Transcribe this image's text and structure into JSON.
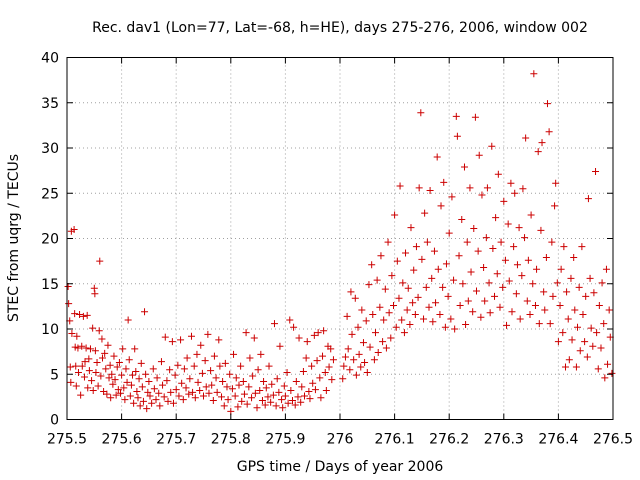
{
  "chart_data": {
    "type": "scatter",
    "title": "Rec. dav1 (Lon=77, Lat=-68, h=HE), days 275-276, 2006, window 002",
    "xlabel": "GPS time / Days of year 2006",
    "ylabel": "STEC from uqrg / TECUs",
    "xlim": [
      275.5,
      276.5
    ],
    "ylim": [
      0,
      40
    ],
    "xticks": [
      "275.5",
      "275.6",
      "275.7",
      "275.8",
      "275.9",
      "276",
      "276.1",
      "276.2",
      "276.3",
      "276.4",
      "276.5"
    ],
    "yticks": [
      "0",
      "5",
      "10",
      "15",
      "20",
      "25",
      "30",
      "35",
      "40"
    ],
    "grid": true,
    "marker": "+",
    "color": "#cc0000",
    "points": [
      [
        275.502,
        14.7
      ],
      [
        275.503,
        12.8
      ],
      [
        275.505,
        10.9
      ],
      [
        275.506,
        5.8
      ],
      [
        275.507,
        4.1
      ],
      [
        275.508,
        20.8
      ],
      [
        275.509,
        9.5
      ],
      [
        275.513,
        21.0
      ],
      [
        275.514,
        11.7
      ],
      [
        275.515,
        8.0
      ],
      [
        275.516,
        5.9
      ],
      [
        275.517,
        3.7
      ],
      [
        275.518,
        9.2
      ],
      [
        275.52,
        7.9
      ],
      [
        275.521,
        5.2
      ],
      [
        275.523,
        11.6
      ],
      [
        275.525,
        2.7
      ],
      [
        275.527,
        8.1
      ],
      [
        275.528,
        5.9
      ],
      [
        275.53,
        11.4
      ],
      [
        275.532,
        4.7
      ],
      [
        275.533,
        6.4
      ],
      [
        275.535,
        7.9
      ],
      [
        275.537,
        11.5
      ],
      [
        275.538,
        3.5
      ],
      [
        275.54,
        6.7
      ],
      [
        275.541,
        5.4
      ],
      [
        275.543,
        7.8
      ],
      [
        275.545,
        4.3
      ],
      [
        275.547,
        10.1
      ],
      [
        275.548,
        3.2
      ],
      [
        275.55,
        14.5
      ],
      [
        275.551,
        13.9
      ],
      [
        275.552,
        7.6
      ],
      [
        275.553,
        5.2
      ],
      [
        275.555,
        6.3
      ],
      [
        275.557,
        3.7
      ],
      [
        275.559,
        9.8
      ],
      [
        275.56,
        17.5
      ],
      [
        275.562,
        4.8
      ],
      [
        275.564,
        8.9
      ],
      [
        275.565,
        6.8
      ],
      [
        275.567,
        3.1
      ],
      [
        275.569,
        7.3
      ],
      [
        275.571,
        5.6
      ],
      [
        275.573,
        2.8
      ],
      [
        275.575,
        8.2
      ],
      [
        275.577,
        4.6
      ],
      [
        275.579,
        6.0
      ],
      [
        275.58,
        2.4
      ],
      [
        275.582,
        5.0
      ],
      [
        275.584,
        3.9
      ],
      [
        275.586,
        7.0
      ],
      [
        275.588,
        4.4
      ],
      [
        275.59,
        2.7
      ],
      [
        275.592,
        5.8
      ],
      [
        275.594,
        3.3
      ],
      [
        275.596,
        6.3
      ],
      [
        275.598,
        2.9
      ],
      [
        275.6,
        4.9
      ],
      [
        275.602,
        7.8
      ],
      [
        275.604,
        3.5
      ],
      [
        275.606,
        2.2
      ],
      [
        275.608,
        5.6
      ],
      [
        275.61,
        4.1
      ],
      [
        275.612,
        11.0
      ],
      [
        275.614,
        6.6
      ],
      [
        275.616,
        2.6
      ],
      [
        275.618,
        3.8
      ],
      [
        275.62,
        4.9
      ],
      [
        275.622,
        1.8
      ],
      [
        275.624,
        7.8
      ],
      [
        275.626,
        5.3
      ],
      [
        275.628,
        3.1
      ],
      [
        275.63,
        2.4
      ],
      [
        275.632,
        4.5
      ],
      [
        275.634,
        1.5
      ],
      [
        275.636,
        6.2
      ],
      [
        275.638,
        3.6
      ],
      [
        275.64,
        2.0
      ],
      [
        275.642,
        11.9
      ],
      [
        275.644,
        5.0
      ],
      [
        275.646,
        1.2
      ],
      [
        275.648,
        3.0
      ],
      [
        275.65,
        4.2
      ],
      [
        275.652,
        2.6
      ],
      [
        275.655,
        1.8
      ],
      [
        275.658,
        5.6
      ],
      [
        275.66,
        3.4
      ],
      [
        275.663,
        2.2
      ],
      [
        275.665,
        4.6
      ],
      [
        275.668,
        2.9
      ],
      [
        275.67,
        1.5
      ],
      [
        275.673,
        6.4
      ],
      [
        275.675,
        3.8
      ],
      [
        275.678,
        2.5
      ],
      [
        275.68,
        9.1
      ],
      [
        275.683,
        4.3
      ],
      [
        275.685,
        2.0
      ],
      [
        275.688,
        5.5
      ],
      [
        275.69,
        3.0
      ],
      [
        275.693,
        8.6
      ],
      [
        275.695,
        1.8
      ],
      [
        275.698,
        4.9
      ],
      [
        275.7,
        3.3
      ],
      [
        275.703,
        6.0
      ],
      [
        275.705,
        2.6
      ],
      [
        275.708,
        8.8
      ],
      [
        275.71,
        4.0
      ],
      [
        275.713,
        2.2
      ],
      [
        275.715,
        5.6
      ],
      [
        275.718,
        3.5
      ],
      [
        275.72,
        6.8
      ],
      [
        275.723,
        2.8
      ],
      [
        275.725,
        4.5
      ],
      [
        275.728,
        9.2
      ],
      [
        275.73,
        3.0
      ],
      [
        275.733,
        5.9
      ],
      [
        275.735,
        2.4
      ],
      [
        275.738,
        7.2
      ],
      [
        275.74,
        4.1
      ],
      [
        275.743,
        3.2
      ],
      [
        275.745,
        8.2
      ],
      [
        275.748,
        5.1
      ],
      [
        275.75,
        2.6
      ],
      [
        275.753,
        6.5
      ],
      [
        275.755,
        3.6
      ],
      [
        275.758,
        9.4
      ],
      [
        275.76,
        2.9
      ],
      [
        275.763,
        5.4
      ],
      [
        275.765,
        3.8
      ],
      [
        275.768,
        2.1
      ],
      [
        275.77,
        7.0
      ],
      [
        275.773,
        4.6
      ],
      [
        275.775,
        3.0
      ],
      [
        275.778,
        8.8
      ],
      [
        275.78,
        5.9
      ],
      [
        275.783,
        2.5
      ],
      [
        275.785,
        4.2
      ],
      [
        275.788,
        1.5
      ],
      [
        275.79,
        6.2
      ],
      [
        275.793,
        3.6
      ],
      [
        275.795,
        2.2
      ],
      [
        275.798,
        5.0
      ],
      [
        275.8,
        0.9
      ],
      [
        275.803,
        3.4
      ],
      [
        275.805,
        7.2
      ],
      [
        275.808,
        2.6
      ],
      [
        275.81,
        4.6
      ],
      [
        275.813,
        1.4
      ],
      [
        275.815,
        3.8
      ],
      [
        275.818,
        5.9
      ],
      [
        275.82,
        2.0
      ],
      [
        275.823,
        4.2
      ],
      [
        275.825,
        2.8
      ],
      [
        275.828,
        9.6
      ],
      [
        275.83,
        1.7
      ],
      [
        275.833,
        3.6
      ],
      [
        275.835,
        6.8
      ],
      [
        275.838,
        2.4
      ],
      [
        275.84,
        4.8
      ],
      [
        275.843,
        9.0
      ],
      [
        275.845,
        2.9
      ],
      [
        275.848,
        1.3
      ],
      [
        275.85,
        5.5
      ],
      [
        275.853,
        3.2
      ],
      [
        275.855,
        7.2
      ],
      [
        275.858,
        2.1
      ],
      [
        275.86,
        4.2
      ],
      [
        275.863,
        1.6
      ],
      [
        275.865,
        3.5
      ],
      [
        275.868,
        2.5
      ],
      [
        275.87,
        5.9
      ],
      [
        275.873,
        1.9
      ],
      [
        275.875,
        3.9
      ],
      [
        275.878,
        2.7
      ],
      [
        275.88,
        10.6
      ],
      [
        275.883,
        1.5
      ],
      [
        275.885,
        4.5
      ],
      [
        275.888,
        3.0
      ],
      [
        275.89,
        8.1
      ],
      [
        275.893,
        2.2
      ],
      [
        275.895,
        1.3
      ],
      [
        275.898,
        3.7
      ],
      [
        275.9,
        2.6
      ],
      [
        275.903,
        5.2
      ],
      [
        275.905,
        1.8
      ],
      [
        275.908,
        11.0
      ],
      [
        275.91,
        3.2
      ],
      [
        275.913,
        2.1
      ],
      [
        275.915,
        10.2
      ],
      [
        275.918,
        1.6
      ],
      [
        275.92,
        4.2
      ],
      [
        275.923,
        2.5
      ],
      [
        275.925,
        9.0
      ],
      [
        275.928,
        1.9
      ],
      [
        275.93,
        3.6
      ],
      [
        275.933,
        5.3
      ],
      [
        275.935,
        2.6
      ],
      [
        275.938,
        6.8
      ],
      [
        275.94,
        8.6
      ],
      [
        275.943,
        3.1
      ],
      [
        275.945,
        2.3
      ],
      [
        275.948,
        5.9
      ],
      [
        275.95,
        4.0
      ],
      [
        275.953,
        9.3
      ],
      [
        275.955,
        3.3
      ],
      [
        275.958,
        6.5
      ],
      [
        275.96,
        9.6
      ],
      [
        275.963,
        4.6
      ],
      [
        275.965,
        2.4
      ],
      [
        275.968,
        7.0
      ],
      [
        275.97,
        9.8
      ],
      [
        275.973,
        5.2
      ],
      [
        275.975,
        3.2
      ],
      [
        275.978,
        8.1
      ],
      [
        275.98,
        5.8
      ],
      [
        275.983,
        7.8
      ],
      [
        275.985,
        4.4
      ],
      [
        275.988,
        6.6
      ],
      [
        276.005,
        4.5
      ],
      [
        276.007,
        5.9
      ],
      [
        276.01,
        6.9
      ],
      [
        276.013,
        11.4
      ],
      [
        276.015,
        7.8
      ],
      [
        276.018,
        5.5
      ],
      [
        276.02,
        14.1
      ],
      [
        276.022,
        9.4
      ],
      [
        276.025,
        6.6
      ],
      [
        276.028,
        13.4
      ],
      [
        276.03,
        4.9
      ],
      [
        276.033,
        10.2
      ],
      [
        276.035,
        7.2
      ],
      [
        276.038,
        5.8
      ],
      [
        276.04,
        12.1
      ],
      [
        276.043,
        8.5
      ],
      [
        276.045,
        6.3
      ],
      [
        276.048,
        10.9
      ],
      [
        276.05,
        5.2
      ],
      [
        276.053,
        14.9
      ],
      [
        276.055,
        8.0
      ],
      [
        276.058,
        17.1
      ],
      [
        276.06,
        11.6
      ],
      [
        276.063,
        6.6
      ],
      [
        276.065,
        9.6
      ],
      [
        276.068,
        15.4
      ],
      [
        276.07,
        7.4
      ],
      [
        276.073,
        12.4
      ],
      [
        276.075,
        18.1
      ],
      [
        276.078,
        8.6
      ],
      [
        276.08,
        11.0
      ],
      [
        276.083,
        14.4
      ],
      [
        276.085,
        7.9
      ],
      [
        276.088,
        19.6
      ],
      [
        276.09,
        11.8
      ],
      [
        276.093,
        9.0
      ],
      [
        276.095,
        15.9
      ],
      [
        276.098,
        12.6
      ],
      [
        276.1,
        22.6
      ],
      [
        276.103,
        10.2
      ],
      [
        276.105,
        17.5
      ],
      [
        276.108,
        13.4
      ],
      [
        276.11,
        25.8
      ],
      [
        276.113,
        11.0
      ],
      [
        276.115,
        15.1
      ],
      [
        276.118,
        9.6
      ],
      [
        276.12,
        18.4
      ],
      [
        276.123,
        12.1
      ],
      [
        276.125,
        14.5
      ],
      [
        276.128,
        10.5
      ],
      [
        276.13,
        21.2
      ],
      [
        276.133,
        12.9
      ],
      [
        276.135,
        16.5
      ],
      [
        276.138,
        11.6
      ],
      [
        276.14,
        19.1
      ],
      [
        276.143,
        13.5
      ],
      [
        276.145,
        25.6
      ],
      [
        276.148,
        33.9
      ],
      [
        276.15,
        17.7
      ],
      [
        276.153,
        11.1
      ],
      [
        276.155,
        22.8
      ],
      [
        276.158,
        14.6
      ],
      [
        276.16,
        19.6
      ],
      [
        276.163,
        12.4
      ],
      [
        276.165,
        25.3
      ],
      [
        276.168,
        15.6
      ],
      [
        276.17,
        10.8
      ],
      [
        276.173,
        18.6
      ],
      [
        276.175,
        12.9
      ],
      [
        276.178,
        29.0
      ],
      [
        276.18,
        16.6
      ],
      [
        276.183,
        11.6
      ],
      [
        276.185,
        23.6
      ],
      [
        276.188,
        14.6
      ],
      [
        276.19,
        26.2
      ],
      [
        276.193,
        10.2
      ],
      [
        276.195,
        17.2
      ],
      [
        276.198,
        13.6
      ],
      [
        276.2,
        20.6
      ],
      [
        276.203,
        11.1
      ],
      [
        276.205,
        24.6
      ],
      [
        276.208,
        15.4
      ],
      [
        276.21,
        10.0
      ],
      [
        276.213,
        33.5
      ],
      [
        276.215,
        31.3
      ],
      [
        276.218,
        18.1
      ],
      [
        276.22,
        12.6
      ],
      [
        276.223,
        22.1
      ],
      [
        276.225,
        15.0
      ],
      [
        276.228,
        27.9
      ],
      [
        276.23,
        10.5
      ],
      [
        276.233,
        19.6
      ],
      [
        276.235,
        13.1
      ],
      [
        276.238,
        25.6
      ],
      [
        276.24,
        16.3
      ],
      [
        276.243,
        11.9
      ],
      [
        276.245,
        21.1
      ],
      [
        276.248,
        33.4
      ],
      [
        276.25,
        14.2
      ],
      [
        276.253,
        18.6
      ],
      [
        276.255,
        29.2
      ],
      [
        276.258,
        11.3
      ],
      [
        276.26,
        24.8
      ],
      [
        276.263,
        16.8
      ],
      [
        276.265,
        13.1
      ],
      [
        276.268,
        20.1
      ],
      [
        276.27,
        25.6
      ],
      [
        276.273,
        15.1
      ],
      [
        276.275,
        11.8
      ],
      [
        276.278,
        30.2
      ],
      [
        276.28,
        18.9
      ],
      [
        276.283,
        13.6
      ],
      [
        276.285,
        22.3
      ],
      [
        276.288,
        16.1
      ],
      [
        276.29,
        27.1
      ],
      [
        276.293,
        12.4
      ],
      [
        276.295,
        19.6
      ],
      [
        276.298,
        14.6
      ],
      [
        276.3,
        24.1
      ],
      [
        276.303,
        17.6
      ],
      [
        276.305,
        10.4
      ],
      [
        276.308,
        21.6
      ],
      [
        276.31,
        15.3
      ],
      [
        276.313,
        26.1
      ],
      [
        276.315,
        11.9
      ],
      [
        276.318,
        19.1
      ],
      [
        276.32,
        25.0
      ],
      [
        276.323,
        13.9
      ],
      [
        276.325,
        17.1
      ],
      [
        276.328,
        21.2
      ],
      [
        276.33,
        11.1
      ],
      [
        276.333,
        15.9
      ],
      [
        276.335,
        25.5
      ],
      [
        276.338,
        20.1
      ],
      [
        276.34,
        31.1
      ],
      [
        276.343,
        13.1
      ],
      [
        276.345,
        17.6
      ],
      [
        276.348,
        11.6
      ],
      [
        276.35,
        22.6
      ],
      [
        276.353,
        15.0
      ],
      [
        276.355,
        38.2
      ],
      [
        276.358,
        12.6
      ],
      [
        276.36,
        16.6
      ],
      [
        276.363,
        29.6
      ],
      [
        276.365,
        10.6
      ],
      [
        276.368,
        20.9
      ],
      [
        276.37,
        30.6
      ],
      [
        276.373,
        14.1
      ],
      [
        276.375,
        12.1
      ],
      [
        276.378,
        17.9
      ],
      [
        276.38,
        34.9
      ],
      [
        276.383,
        31.8
      ],
      [
        276.385,
        10.6
      ],
      [
        276.388,
        19.6
      ],
      [
        276.39,
        13.6
      ],
      [
        276.393,
        23.6
      ],
      [
        276.395,
        26.1
      ],
      [
        276.398,
        15.1
      ],
      [
        276.4,
        8.6
      ],
      [
        276.403,
        12.6
      ],
      [
        276.405,
        16.6
      ],
      [
        276.408,
        9.6
      ],
      [
        276.41,
        19.1
      ],
      [
        276.413,
        5.8
      ],
      [
        276.415,
        14.1
      ],
      [
        276.418,
        11.1
      ],
      [
        276.42,
        6.6
      ],
      [
        276.423,
        15.6
      ],
      [
        276.425,
        8.8
      ],
      [
        276.428,
        17.9
      ],
      [
        276.43,
        12.1
      ],
      [
        276.433,
        5.8
      ],
      [
        276.435,
        10.2
      ],
      [
        276.438,
        14.6
      ],
      [
        276.44,
        7.6
      ],
      [
        276.443,
        19.1
      ],
      [
        276.445,
        11.6
      ],
      [
        276.448,
        8.6
      ],
      [
        276.45,
        13.6
      ],
      [
        276.453,
        6.9
      ],
      [
        276.455,
        24.4
      ],
      [
        276.458,
        15.6
      ],
      [
        276.46,
        10.1
      ],
      [
        276.463,
        8.1
      ],
      [
        276.465,
        14.0
      ],
      [
        276.468,
        27.4
      ],
      [
        276.47,
        9.6
      ],
      [
        276.473,
        5.6
      ],
      [
        276.475,
        12.6
      ],
      [
        276.478,
        7.9
      ],
      [
        276.48,
        15.1
      ],
      [
        276.483,
        10.6
      ],
      [
        276.485,
        4.6
      ],
      [
        276.488,
        16.6
      ],
      [
        276.49,
        6.1
      ],
      [
        276.493,
        12.1
      ],
      [
        276.495,
        9.1
      ],
      [
        276.498,
        5.1
      ]
    ]
  }
}
